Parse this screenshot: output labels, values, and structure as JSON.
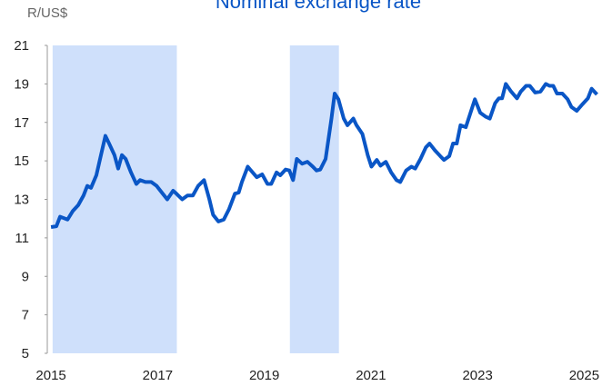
{
  "chart_data": {
    "type": "line",
    "title": "Nominal exchange rate",
    "y_label": "R/US$",
    "xlim": [
      2014.93,
      2025.3
    ],
    "xticks": [
      2015,
      2017,
      2019,
      2021,
      2023,
      2025
    ],
    "ylim": [
      5,
      21
    ],
    "yticks": [
      5,
      7,
      9,
      11,
      13,
      15,
      17,
      19,
      21
    ],
    "grid": false,
    "shaded_color": "#cfe0fb",
    "shaded_regions": [
      [
        2015.03,
        2017.36
      ],
      [
        2019.48,
        2020.4
      ]
    ],
    "series": [
      {
        "name": "R/US$",
        "color": "#0a56c6",
        "x": [
          2015.0,
          2015.1,
          2015.17,
          2015.31,
          2015.41,
          2015.51,
          2015.61,
          2015.68,
          2015.75,
          2015.85,
          2015.92,
          2016.02,
          2016.09,
          2016.19,
          2016.26,
          2016.33,
          2016.4,
          2016.5,
          2016.6,
          2016.67,
          2016.77,
          2016.88,
          2016.98,
          2017.08,
          2017.18,
          2017.29,
          2017.35,
          2017.46,
          2017.56,
          2017.66,
          2017.76,
          2017.87,
          2017.97,
          2018.04,
          2018.14,
          2018.24,
          2018.34,
          2018.45,
          2018.52,
          2018.58,
          2018.69,
          2018.75,
          2018.86,
          2018.96,
          2019.06,
          2019.13,
          2019.23,
          2019.3,
          2019.4,
          2019.47,
          2019.54,
          2019.61,
          2019.71,
          2019.81,
          2019.91,
          2019.98,
          2020.05,
          2020.15,
          2020.26,
          2020.32,
          2020.39,
          2020.49,
          2020.56,
          2020.67,
          2020.73,
          2020.84,
          2020.94,
          2021.01,
          2021.11,
          2021.18,
          2021.28,
          2021.38,
          2021.48,
          2021.55,
          2021.66,
          2021.76,
          2021.83,
          2021.93,
          2022.03,
          2022.1,
          2022.2,
          2022.3,
          2022.37,
          2022.47,
          2022.54,
          2022.61,
          2022.68,
          2022.78,
          2022.88,
          2022.95,
          2023.05,
          2023.15,
          2023.23,
          2023.33,
          2023.4,
          2023.46,
          2023.53,
          2023.63,
          2023.74,
          2023.81,
          2023.91,
          2023.98,
          2024.08,
          2024.18,
          2024.28,
          2024.35,
          2024.42,
          2024.49,
          2024.59,
          2024.69,
          2024.76,
          2024.86,
          2024.97,
          2025.07,
          2025.14,
          2025.24
        ],
        "values": [
          11.56,
          11.6,
          12.1,
          11.95,
          12.4,
          12.7,
          13.2,
          13.7,
          13.6,
          14.25,
          15.1,
          16.3,
          15.9,
          15.3,
          14.6,
          15.3,
          15.1,
          14.4,
          13.8,
          14.0,
          13.9,
          13.9,
          13.7,
          13.35,
          13.0,
          13.45,
          13.3,
          13.0,
          13.2,
          13.2,
          13.7,
          14.0,
          13.0,
          12.2,
          11.85,
          11.95,
          12.5,
          13.3,
          13.35,
          13.9,
          14.7,
          14.5,
          14.15,
          14.3,
          13.8,
          13.8,
          14.4,
          14.25,
          14.55,
          14.5,
          14.0,
          15.1,
          14.85,
          14.95,
          14.7,
          14.5,
          14.55,
          15.1,
          17.2,
          18.5,
          18.2,
          17.2,
          16.85,
          17.2,
          16.85,
          16.4,
          15.3,
          14.7,
          15.05,
          14.75,
          14.95,
          14.4,
          14.0,
          13.9,
          14.5,
          14.7,
          14.6,
          15.1,
          15.7,
          15.9,
          15.55,
          15.25,
          15.05,
          15.25,
          15.9,
          15.9,
          16.85,
          16.75,
          17.6,
          18.2,
          17.5,
          17.3,
          17.2,
          18.0,
          18.25,
          18.25,
          19.0,
          18.6,
          18.25,
          18.6,
          18.9,
          18.9,
          18.55,
          18.6,
          19.0,
          18.9,
          18.9,
          18.5,
          18.5,
          18.2,
          17.8,
          17.6,
          17.95,
          18.25,
          18.75,
          18.45
        ]
      }
    ]
  }
}
